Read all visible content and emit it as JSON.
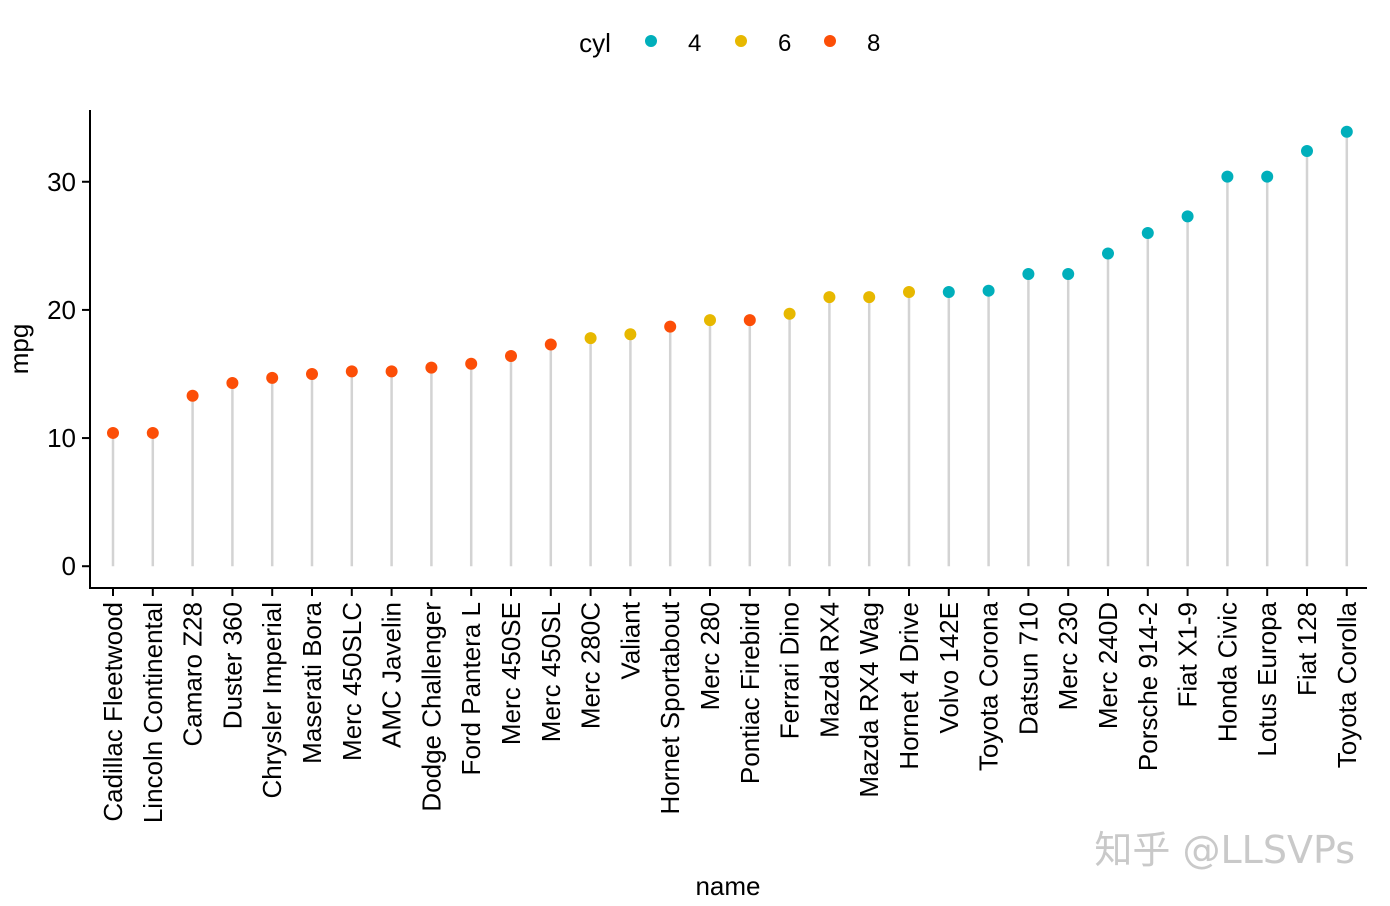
{
  "chart_data": {
    "type": "lollipop",
    "title": "",
    "xlabel": "name",
    "ylabel": "mpg",
    "ylim": [
      -1.7,
      35.6
    ],
    "yticks": [
      0,
      10,
      20,
      30
    ],
    "legend": {
      "title": "cyl",
      "position": "top",
      "entries": [
        {
          "label": "4",
          "color": "#00AFBB"
        },
        {
          "label": "6",
          "color": "#E7B800"
        },
        {
          "label": "8",
          "color": "#FC4E07"
        }
      ]
    },
    "stem_color": "#d3d3d3",
    "points": [
      {
        "name": "Cadillac Fleetwood",
        "mpg": 10.4,
        "cyl": "8"
      },
      {
        "name": "Lincoln Continental",
        "mpg": 10.4,
        "cyl": "8"
      },
      {
        "name": "Camaro Z28",
        "mpg": 13.3,
        "cyl": "8"
      },
      {
        "name": "Duster 360",
        "mpg": 14.3,
        "cyl": "8"
      },
      {
        "name": "Chrysler Imperial",
        "mpg": 14.7,
        "cyl": "8"
      },
      {
        "name": "Maserati Bora",
        "mpg": 15.0,
        "cyl": "8"
      },
      {
        "name": "Merc 450SLC",
        "mpg": 15.2,
        "cyl": "8"
      },
      {
        "name": "AMC Javelin",
        "mpg": 15.2,
        "cyl": "8"
      },
      {
        "name": "Dodge Challenger",
        "mpg": 15.5,
        "cyl": "8"
      },
      {
        "name": "Ford Pantera L",
        "mpg": 15.8,
        "cyl": "8"
      },
      {
        "name": "Merc 450SE",
        "mpg": 16.4,
        "cyl": "8"
      },
      {
        "name": "Merc 450SL",
        "mpg": 17.3,
        "cyl": "8"
      },
      {
        "name": "Merc 280C",
        "mpg": 17.8,
        "cyl": "6"
      },
      {
        "name": "Valiant",
        "mpg": 18.1,
        "cyl": "6"
      },
      {
        "name": "Hornet Sportabout",
        "mpg": 18.7,
        "cyl": "8"
      },
      {
        "name": "Merc 280",
        "mpg": 19.2,
        "cyl": "6"
      },
      {
        "name": "Pontiac Firebird",
        "mpg": 19.2,
        "cyl": "8"
      },
      {
        "name": "Ferrari Dino",
        "mpg": 19.7,
        "cyl": "6"
      },
      {
        "name": "Mazda RX4",
        "mpg": 21.0,
        "cyl": "6"
      },
      {
        "name": "Mazda RX4 Wag",
        "mpg": 21.0,
        "cyl": "6"
      },
      {
        "name": "Hornet 4 Drive",
        "mpg": 21.4,
        "cyl": "6"
      },
      {
        "name": "Volvo 142E",
        "mpg": 21.4,
        "cyl": "4"
      },
      {
        "name": "Toyota Corona",
        "mpg": 21.5,
        "cyl": "4"
      },
      {
        "name": "Datsun 710",
        "mpg": 22.8,
        "cyl": "4"
      },
      {
        "name": "Merc 230",
        "mpg": 22.8,
        "cyl": "4"
      },
      {
        "name": "Merc 240D",
        "mpg": 24.4,
        "cyl": "4"
      },
      {
        "name": "Porsche 914-2",
        "mpg": 26.0,
        "cyl": "4"
      },
      {
        "name": "Fiat X1-9",
        "mpg": 27.3,
        "cyl": "4"
      },
      {
        "name": "Honda Civic",
        "mpg": 30.4,
        "cyl": "4"
      },
      {
        "name": "Lotus Europa",
        "mpg": 30.4,
        "cyl": "4"
      },
      {
        "name": "Fiat 128",
        "mpg": 32.4,
        "cyl": "4"
      },
      {
        "name": "Toyota Corolla",
        "mpg": 33.9,
        "cyl": "4"
      }
    ]
  },
  "watermark": "知乎 @LLSVPs"
}
